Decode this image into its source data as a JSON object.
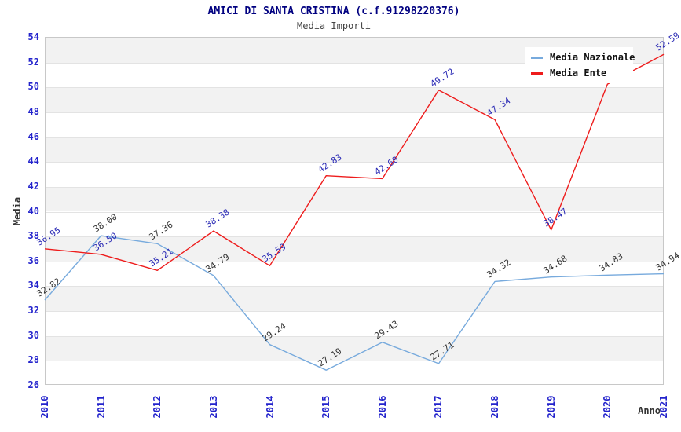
{
  "title": "AMICI DI SANTA CRISTINA (c.f.91298220376)",
  "subtitle": "Media Importi",
  "chart_data": {
    "type": "line",
    "x": [
      "2010",
      "2011",
      "2012",
      "2013",
      "2014",
      "2015",
      "2016",
      "2017",
      "2018",
      "2019",
      "2020",
      "2021"
    ],
    "xlabel": "Anno",
    "ylabel": "Media",
    "ylim": [
      26,
      54
    ],
    "ytick_step": 2,
    "grid": "horizontal alternating bands",
    "legend_position": "top-right",
    "series": [
      {
        "name": "Media Nazionale",
        "color": "#77aadd",
        "label_color": "#333333",
        "values": [
          32.82,
          38.0,
          37.36,
          34.79,
          29.24,
          27.19,
          29.43,
          27.71,
          34.32,
          34.68,
          34.83,
          34.94
        ],
        "hidden_value_labels": []
      },
      {
        "name": "Media Ente",
        "color": "#ee1c1c",
        "label_color": "#2a2ab5",
        "values": [
          36.95,
          36.5,
          35.21,
          38.38,
          35.59,
          42.83,
          42.6,
          49.72,
          47.34,
          38.47,
          50.2,
          52.59
        ],
        "hidden_value_labels": [
          10
        ]
      }
    ]
  },
  "colors": {
    "title": "#000080",
    "subtitle": "#444444",
    "axis_ticks": "#2323cc",
    "axis_titles": "#333333",
    "band": "#f2f2f2",
    "gridline": "#e3e3e3",
    "plot_border": "#c8c8c8",
    "legend_background": "#ffffff"
  }
}
